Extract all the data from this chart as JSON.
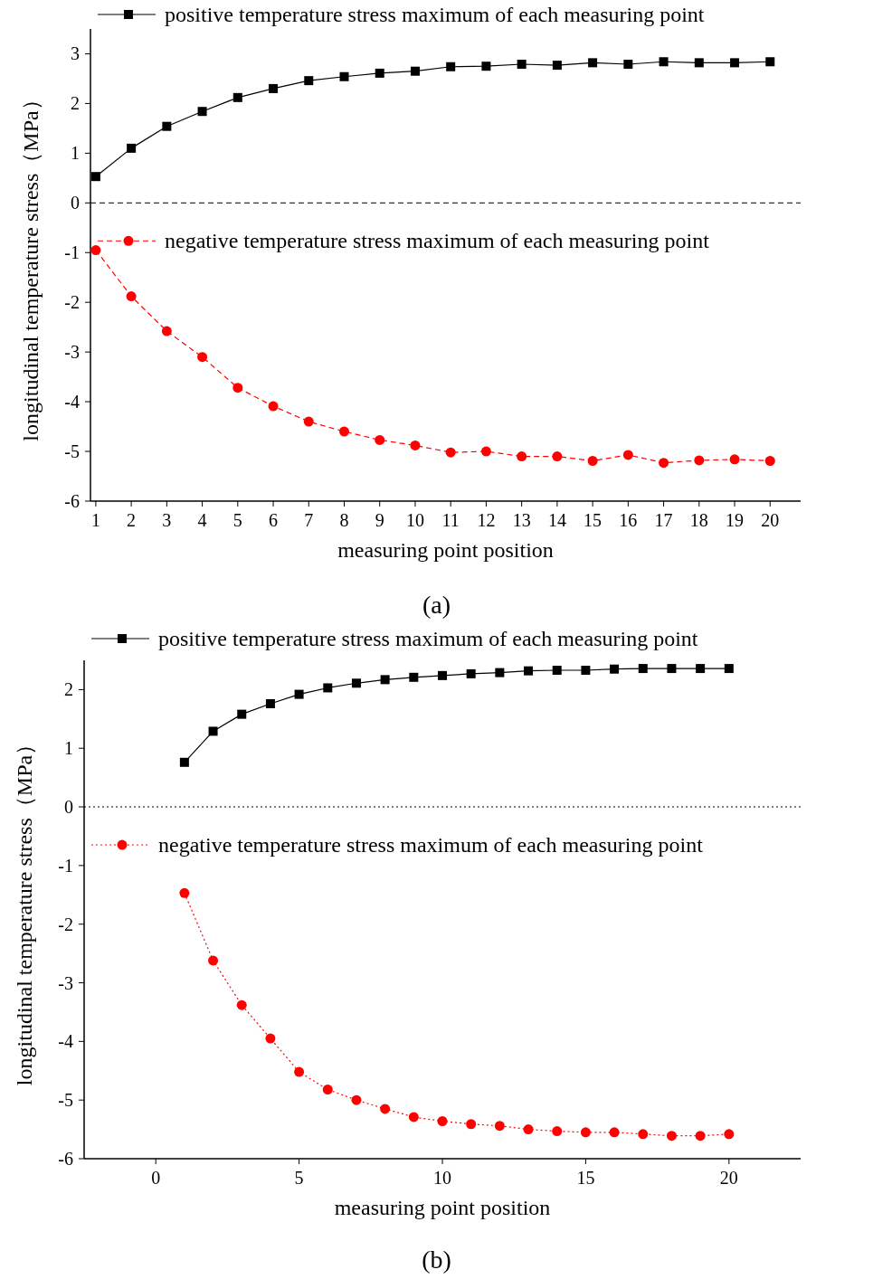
{
  "chart_data": [
    {
      "type": "line",
      "xlabel": "measuring point position",
      "ylabel": "longitudinal temperature stress（MPa）",
      "annotations": [
        "(a)"
      ],
      "x": [
        1,
        2,
        3,
        4,
        5,
        6,
        7,
        8,
        9,
        10,
        11,
        12,
        13,
        14,
        15,
        16,
        17,
        18,
        19,
        20
      ],
      "xlim": [
        0.85,
        20.86
      ],
      "xticks": [
        1,
        2,
        3,
        4,
        5,
        6,
        7,
        8,
        9,
        10,
        11,
        12,
        13,
        14,
        15,
        16,
        17,
        18,
        19,
        20
      ],
      "ylim": [
        -6,
        3.5
      ],
      "yticks": [
        -6,
        -5,
        -4,
        -3,
        -2,
        -1,
        0,
        1,
        2,
        3
      ],
      "legend": "top left",
      "grid": false,
      "ref_lines": [
        {
          "axis": "y",
          "value": 0,
          "color": "#000000",
          "line_style": "dashed"
        }
      ],
      "series": [
        {
          "name": "positive temperature stress maximum of each measuring point",
          "color": "#000000",
          "marker": "square",
          "line_style": "solid",
          "values": [
            0.53,
            1.1,
            1.54,
            1.84,
            2.12,
            2.3,
            2.46,
            2.54,
            2.61,
            2.65,
            2.74,
            2.75,
            2.79,
            2.77,
            2.82,
            2.79,
            2.84,
            2.82,
            2.82,
            2.84
          ]
        },
        {
          "name": "negative temperature stress maximum of each measuring point",
          "color": "#ff0000",
          "marker": "circle",
          "line_style": "dashed",
          "values": [
            -0.95,
            -1.88,
            -2.58,
            -3.1,
            -3.72,
            -4.09,
            -4.4,
            -4.6,
            -4.77,
            -4.88,
            -5.02,
            -5.0,
            -5.1,
            -5.1,
            -5.19,
            -5.07,
            -5.23,
            -5.18,
            -5.16,
            -5.19
          ]
        }
      ]
    },
    {
      "type": "line",
      "xlabel": "measuring point position",
      "ylabel": "longitudinal temperature stress（MPa）",
      "annotations": [
        "(b)"
      ],
      "x": [
        1,
        2,
        3,
        4,
        5,
        6,
        7,
        8,
        9,
        10,
        11,
        12,
        13,
        14,
        15,
        16,
        17,
        18,
        19,
        20
      ],
      "xlim": [
        -2.5,
        22.5
      ],
      "xticks": [
        0,
        5,
        10,
        15,
        20
      ],
      "ylim": [
        -6,
        2.5
      ],
      "yticks": [
        -6,
        -5,
        -4,
        -3,
        -2,
        -1,
        0,
        1,
        2
      ],
      "legend": "top left",
      "grid": false,
      "ref_lines": [
        {
          "axis": "y",
          "value": 0,
          "color": "#000000",
          "line_style": "dotted"
        }
      ],
      "series": [
        {
          "name": "positive temperature stress maximum of each measuring point",
          "color": "#000000",
          "marker": "square",
          "line_style": "solid",
          "values": [
            0.76,
            1.29,
            1.58,
            1.76,
            1.92,
            2.03,
            2.11,
            2.17,
            2.21,
            2.24,
            2.27,
            2.29,
            2.32,
            2.33,
            2.33,
            2.35,
            2.36,
            2.36,
            2.36,
            2.36
          ]
        },
        {
          "name": "negative temperature stress maximum of each measuring point",
          "color": "#ff0000",
          "marker": "circle",
          "line_style": "dotted",
          "values": [
            -1.47,
            -2.62,
            -3.38,
            -3.95,
            -4.52,
            -4.82,
            -5.0,
            -5.15,
            -5.29,
            -5.36,
            -5.41,
            -5.44,
            -5.5,
            -5.53,
            -5.55,
            -5.55,
            -5.58,
            -5.61,
            -5.61,
            -5.58
          ]
        }
      ]
    }
  ]
}
